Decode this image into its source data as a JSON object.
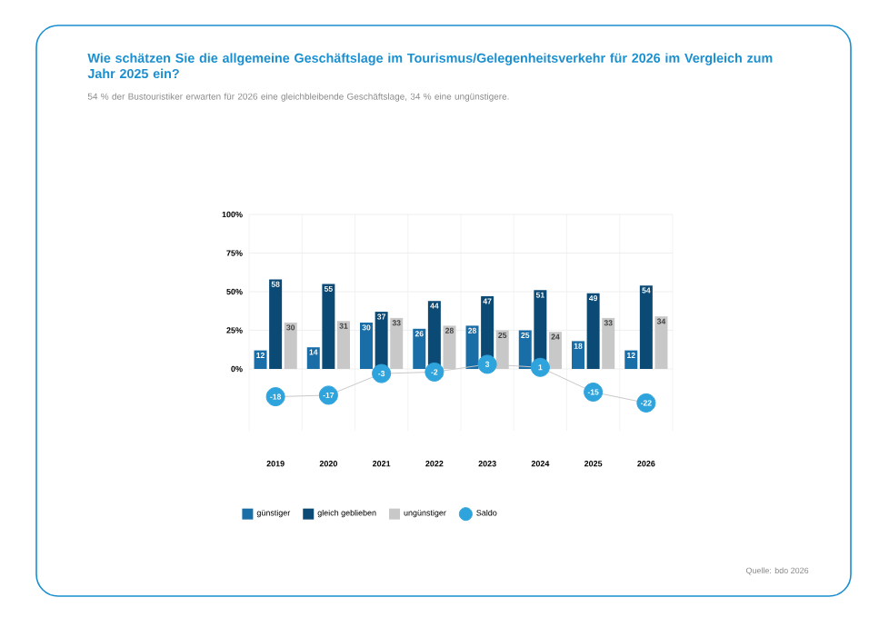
{
  "chart_data": {
    "type": "bar",
    "title": "Wie schätzen Sie die allgemeine Geschäftslage im Tourismus/Gelegenheitsverkehr für 2026 im Vergleich zum Jahr 2025 ein?",
    "subtitle": "54 % der Bustouristiker erwarten für 2026 eine gleichbleibende Geschäftslage, 34 % eine ungünstigere.",
    "annotations": [
      "Quelle: bdo 2026"
    ],
    "categories": [
      "2019",
      "2020",
      "2021",
      "2022",
      "2023",
      "2024",
      "2025",
      "2026"
    ],
    "series": [
      {
        "name": "günstiger",
        "color": "#1a6ea8",
        "values": [
          12,
          14,
          30,
          26,
          28,
          25,
          18,
          12
        ]
      },
      {
        "name": "gleich geblieben",
        "color": "#0b4a75",
        "values": [
          58,
          55,
          37,
          44,
          47,
          51,
          49,
          54
        ]
      },
      {
        "name": "ungünstiger",
        "color": "#c8c8c8",
        "values": [
          30,
          31,
          33,
          28,
          25,
          24,
          33,
          34
        ]
      },
      {
        "name": "Saldo",
        "type": "line",
        "color": "#2ea3dc",
        "marker": "circle",
        "values": [
          -18,
          -17,
          -3,
          -2,
          3,
          1,
          -15,
          -22
        ]
      }
    ],
    "ylim": [
      -40,
      100
    ],
    "yticks": [
      {
        "value": 0,
        "label": "0%"
      },
      {
        "value": 25,
        "label": "25%"
      },
      {
        "value": 50,
        "label": "50%"
      },
      {
        "value": 75,
        "label": "75%"
      },
      {
        "value": 100,
        "label": "100%"
      }
    ],
    "grid": true,
    "legend": "bottom",
    "data_labels": true
  }
}
